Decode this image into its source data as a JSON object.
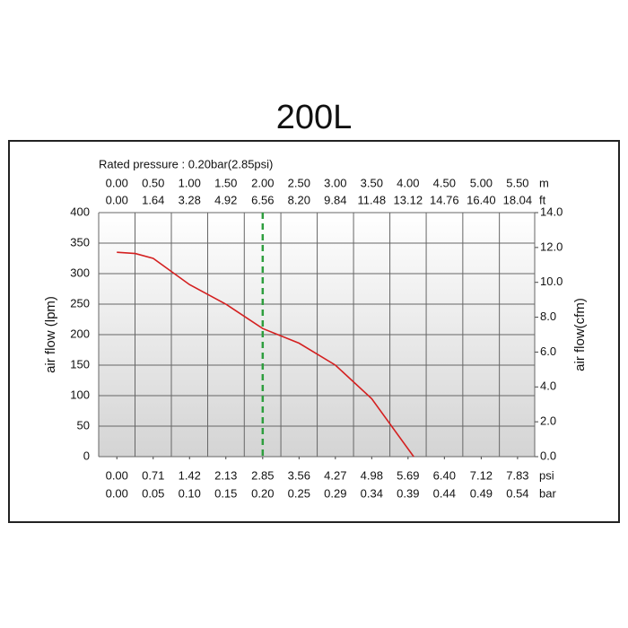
{
  "chart_data": {
    "type": "line",
    "title": "200L",
    "subtitle": "Rated pressure : 0.20bar(2.85psi)",
    "y_label": "air flow (lpm)",
    "y2_label": "air flow(cfm)",
    "x_unit": "psi",
    "xlim": [
      -0.355,
      8.165
    ],
    "xticks": [
      {
        "value": 0,
        "label": "0.00"
      },
      0.71,
      1.42,
      2.13,
      2.85,
      3.56,
      4.27,
      4.98,
      5.69,
      {
        "value": 6.4,
        "label": "6.40"
      },
      7.12,
      7.83
    ],
    "secondary_x_axes": [
      {
        "unit": "bar",
        "side": "bottom",
        "ticks": [
          {
            "value": 0,
            "label": "0.00"
          },
          0.05,
          {
            "value": 0.1,
            "label": "0.10"
          },
          0.15,
          {
            "value": 0.2,
            "label": "0.20"
          },
          0.25,
          0.29,
          0.34,
          0.39,
          0.44,
          0.49,
          0.54
        ]
      },
      {
        "unit": "ft",
        "side": "top",
        "ticks": [
          {
            "value": 0,
            "label": "0.00"
          },
          1.64,
          3.28,
          4.92,
          6.56,
          {
            "value": 8.2,
            "label": "8.20"
          },
          9.84,
          11.48,
          13.12,
          14.76,
          {
            "value": 16.4,
            "label": "16.40"
          },
          18.04
        ]
      },
      {
        "unit": "m",
        "side": "top",
        "ticks": [
          {
            "value": 0,
            "label": "0.00"
          },
          {
            "value": 0.5,
            "label": "0.50"
          },
          {
            "value": 1,
            "label": "1.00"
          },
          {
            "value": 1.5,
            "label": "1.50"
          },
          {
            "value": 2,
            "label": "2.00"
          },
          {
            "value": 2.5,
            "label": "2.50"
          },
          {
            "value": 3,
            "label": "3.00"
          },
          {
            "value": 3.5,
            "label": "3.50"
          },
          {
            "value": 4,
            "label": "4.00"
          },
          {
            "value": 4.5,
            "label": "4.50"
          },
          {
            "value": 5,
            "label": "5.00"
          },
          {
            "value": 5.5,
            "label": "5.50"
          }
        ]
      }
    ],
    "ylim": [
      0,
      400
    ],
    "yticks": [
      0,
      50,
      100,
      150,
      200,
      250,
      300,
      350,
      400
    ],
    "y2lim": [
      0,
      14
    ],
    "y2ticks": [
      {
        "value": 0,
        "label": "0.0"
      },
      {
        "value": 2,
        "label": "2.0"
      },
      {
        "value": 4,
        "label": "4.0"
      },
      {
        "value": 6,
        "label": "6.0"
      },
      {
        "value": 8,
        "label": "8.0"
      },
      {
        "value": 10,
        "label": "10.0"
      },
      {
        "value": 12,
        "label": "12.0"
      },
      {
        "value": 14,
        "label": "14.0"
      }
    ],
    "grid": true,
    "rated_marker": {
      "x": 2.85,
      "color": "#2e9e3e"
    },
    "series": [
      {
        "color": "#d42020",
        "x": [
          0,
          0.36,
          0.71,
          1.42,
          2.13,
          2.85,
          3.56,
          4.27,
          4.98,
          5.8
        ],
        "values": [
          335,
          333,
          325,
          282,
          250,
          210,
          186,
          150,
          95,
          0
        ]
      }
    ]
  }
}
